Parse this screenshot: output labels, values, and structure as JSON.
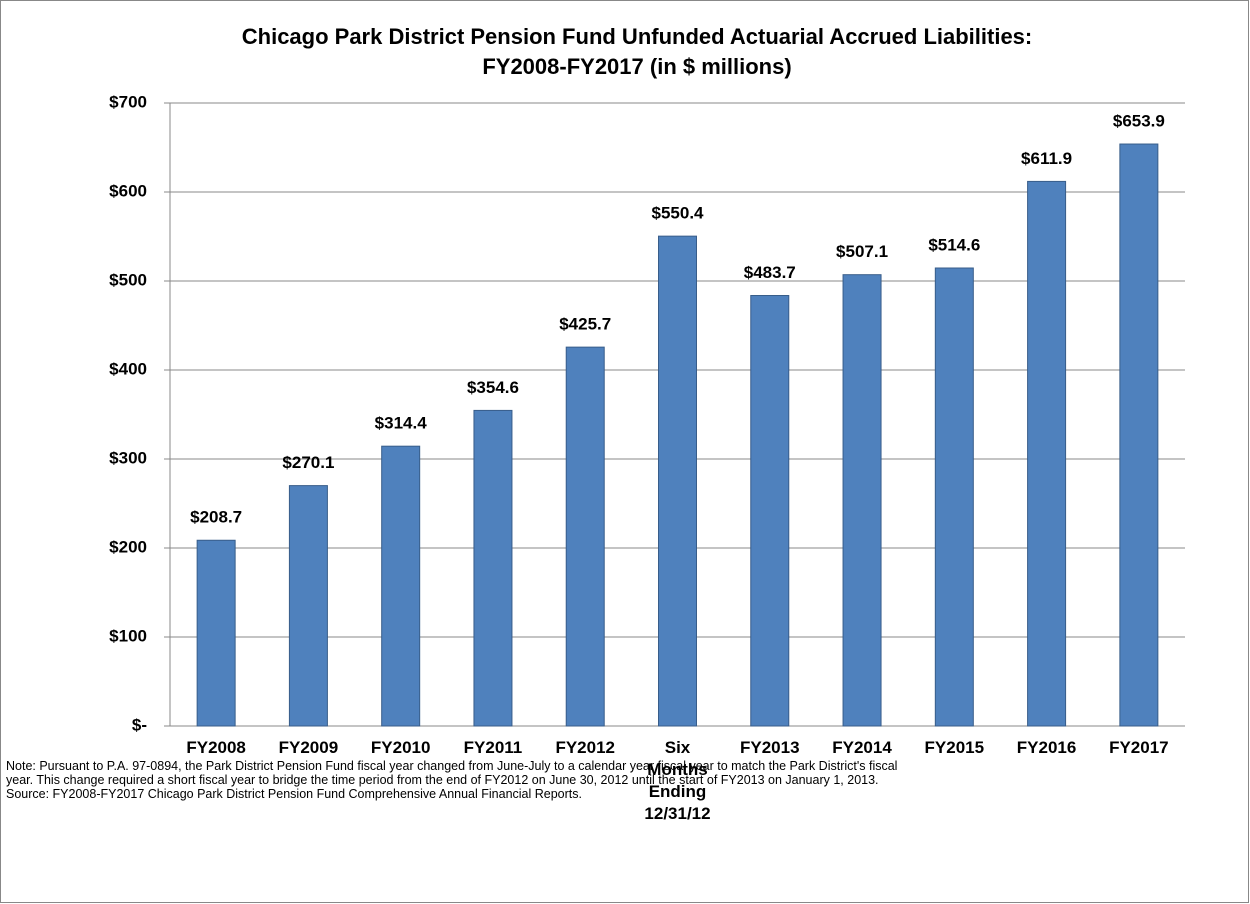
{
  "chart_data": {
    "type": "bar",
    "title": [
      "Chicago Park District Pension Fund Unfunded Actuarial Accrued Liabilities:",
      "FY2008-FY2017  (in $ millions)"
    ],
    "categories": [
      "FY2008",
      "FY2009",
      "FY2010",
      "FY2011",
      "FY2012",
      "Six Months Ending 12/31/12",
      "FY2013",
      "FY2014",
      "FY2015",
      "FY2016",
      "FY2017"
    ],
    "values": [
      208.7,
      270.1,
      314.4,
      354.6,
      425.7,
      550.4,
      483.7,
      507.1,
      514.6,
      611.9,
      653.9
    ],
    "value_labels": [
      "$208.7",
      "$270.1",
      "$314.4",
      "$354.6",
      "$425.7",
      "$550.4",
      "$483.7",
      "$507.1",
      "$514.6",
      "$611.9",
      "$653.9"
    ],
    "color": "#4f81bd",
    "ylim": [
      0,
      700
    ],
    "yticks": [
      {
        "value": 0,
        "label": "$-"
      },
      {
        "value": 100,
        "label": "$100"
      },
      {
        "value": 200,
        "label": "$200"
      },
      {
        "value": 300,
        "label": "$300"
      },
      {
        "value": 400,
        "label": "$400"
      },
      {
        "value": 500,
        "label": "$500"
      },
      {
        "value": 600,
        "label": "$600"
      },
      {
        "value": 700,
        "label": "$700"
      }
    ],
    "grid": true,
    "notes": [
      "Note: Pursuant to P.A. 97-0894, the Park District Pension Fund fiscal year changed from June-July to a calendar year fiscal year to match the Park District's fiscal",
      "year. This change required a short fiscal year to bridge the time period from the end of FY2012 on June 30, 2012 until the start of FY2013 on January 1, 2013.",
      "Source: FY2008-FY2017  Chicago Park District Pension Fund Comprehensive Annual Financial Reports."
    ]
  }
}
